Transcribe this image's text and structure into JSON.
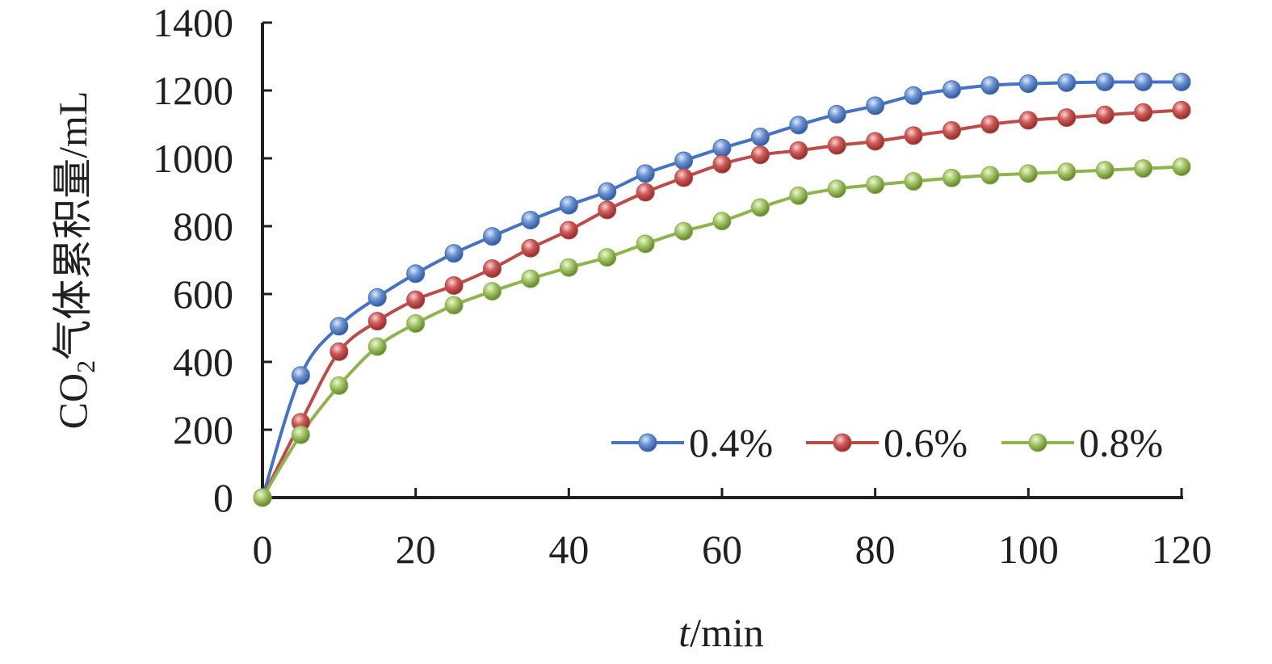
{
  "chart_data": {
    "type": "line",
    "title": "",
    "xlabel_italic": "t",
    "xlabel_rest": "/min",
    "ylabel_pre": "CO",
    "ylabel_sub": "2",
    "ylabel_post": "气体累积量/mL",
    "xlim": [
      0,
      120
    ],
    "ylim": [
      0,
      1400
    ],
    "xticks": [
      "0",
      "20",
      "40",
      "60",
      "80",
      "100",
      "120"
    ],
    "yticks": [
      "0",
      "200",
      "400",
      "600",
      "800",
      "1000",
      "1200",
      "1400"
    ],
    "legend_position": "bottom-right",
    "x": [
      0,
      5,
      10,
      15,
      20,
      25,
      30,
      35,
      40,
      45,
      50,
      55,
      60,
      65,
      70,
      75,
      80,
      85,
      90,
      95,
      100,
      105,
      110,
      115,
      120
    ],
    "series": [
      {
        "name": "0.4%",
        "color": "#4472c4",
        "marker": "#4f81bd",
        "values": [
          0,
          360,
          505,
          590,
          660,
          720,
          770,
          818,
          862,
          902,
          955,
          993,
          1030,
          1063,
          1098,
          1130,
          1155,
          1185,
          1203,
          1215,
          1220,
          1223,
          1225,
          1225,
          1225
        ]
      },
      {
        "name": "0.6%",
        "color": "#be4b48",
        "marker": "#c0504d",
        "values": [
          0,
          222,
          430,
          520,
          583,
          625,
          675,
          735,
          788,
          848,
          900,
          943,
          983,
          1010,
          1023,
          1038,
          1050,
          1067,
          1082,
          1100,
          1112,
          1120,
          1128,
          1135,
          1142
        ]
      },
      {
        "name": "0.8%",
        "color": "#8db44d",
        "marker": "#9bbb59",
        "values": [
          0,
          185,
          330,
          445,
          513,
          567,
          608,
          645,
          678,
          708,
          748,
          785,
          815,
          855,
          890,
          910,
          922,
          932,
          942,
          950,
          955,
          960,
          965,
          970,
          975
        ]
      }
    ]
  }
}
